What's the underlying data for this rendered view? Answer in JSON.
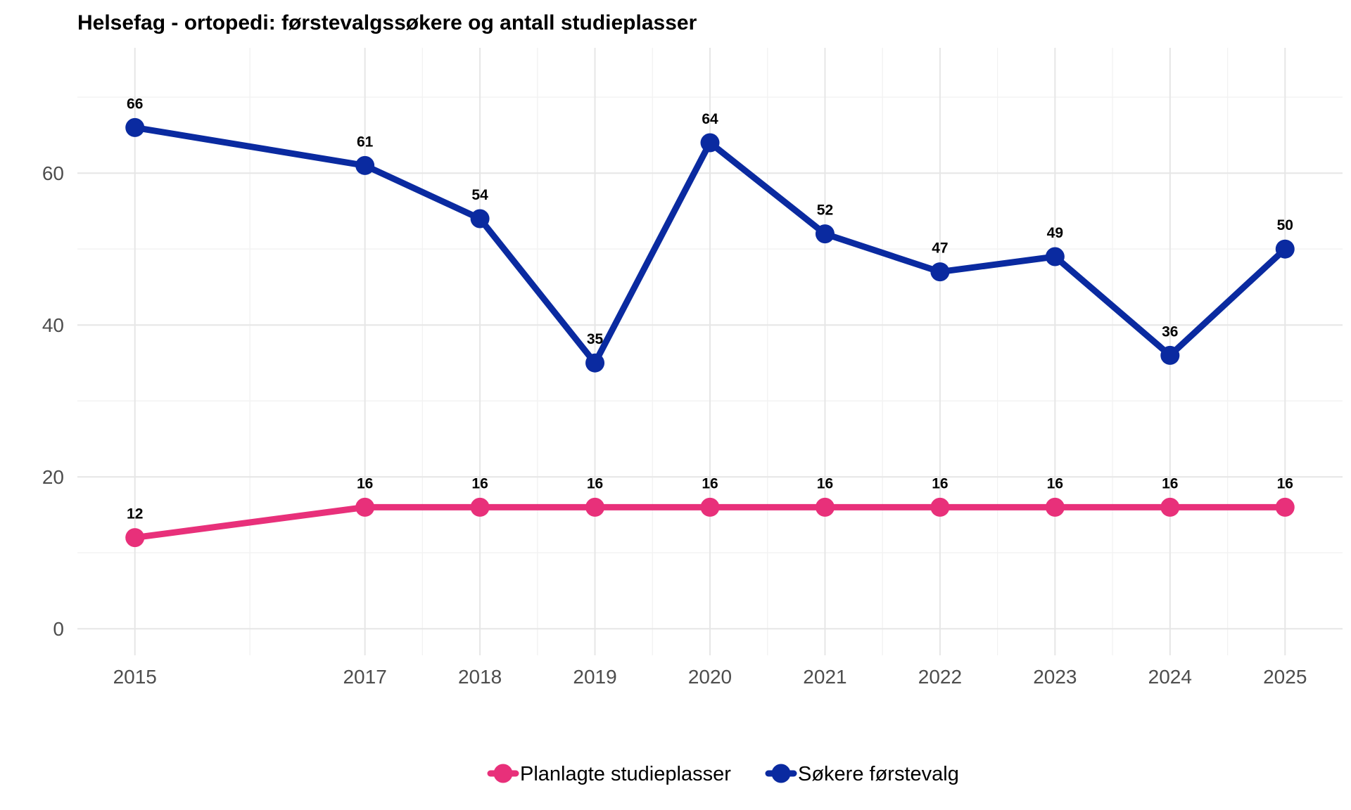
{
  "chart_data": {
    "type": "line",
    "title": "Helsefag - ortopedi: førstevalgssøkere og antall studieplasser",
    "xlabel": "",
    "ylabel": "",
    "x": [
      2015,
      2017,
      2018,
      2019,
      2020,
      2021,
      2022,
      2023,
      2024,
      2025
    ],
    "x_tick_labels": [
      "2015",
      "2017",
      "2018",
      "2019",
      "2020",
      "2021",
      "2022",
      "2023",
      "2024",
      "2025"
    ],
    "y_ticks": [
      0,
      20,
      40,
      60
    ],
    "y_tick_labels": [
      "0",
      "20",
      "40",
      "60"
    ],
    "xlim": [
      2014.5,
      2025.5
    ],
    "ylim": [
      -3.5,
      76.5
    ],
    "grid": true,
    "legend_position": "bottom",
    "series": [
      {
        "name": "Søkere førstevalg",
        "color": "#0a2aa0",
        "values": [
          66,
          61,
          54,
          35,
          64,
          52,
          47,
          49,
          36,
          50
        ],
        "labels": [
          "66",
          "61",
          "54",
          "35",
          "64",
          "52",
          "47",
          "49",
          "36",
          "50"
        ]
      },
      {
        "name": "Planlagte studieplasser",
        "color": "#e8307a",
        "values": [
          12,
          16,
          16,
          16,
          16,
          16,
          16,
          16,
          16,
          16
        ],
        "labels": [
          "12",
          "16",
          "16",
          "16",
          "16",
          "16",
          "16",
          "16",
          "16",
          "16"
        ]
      }
    ],
    "legend": [
      {
        "name": "Planlagte studieplasser",
        "color": "#e8307a"
      },
      {
        "name": "Søkere førstevalg",
        "color": "#0a2aa0"
      }
    ]
  }
}
